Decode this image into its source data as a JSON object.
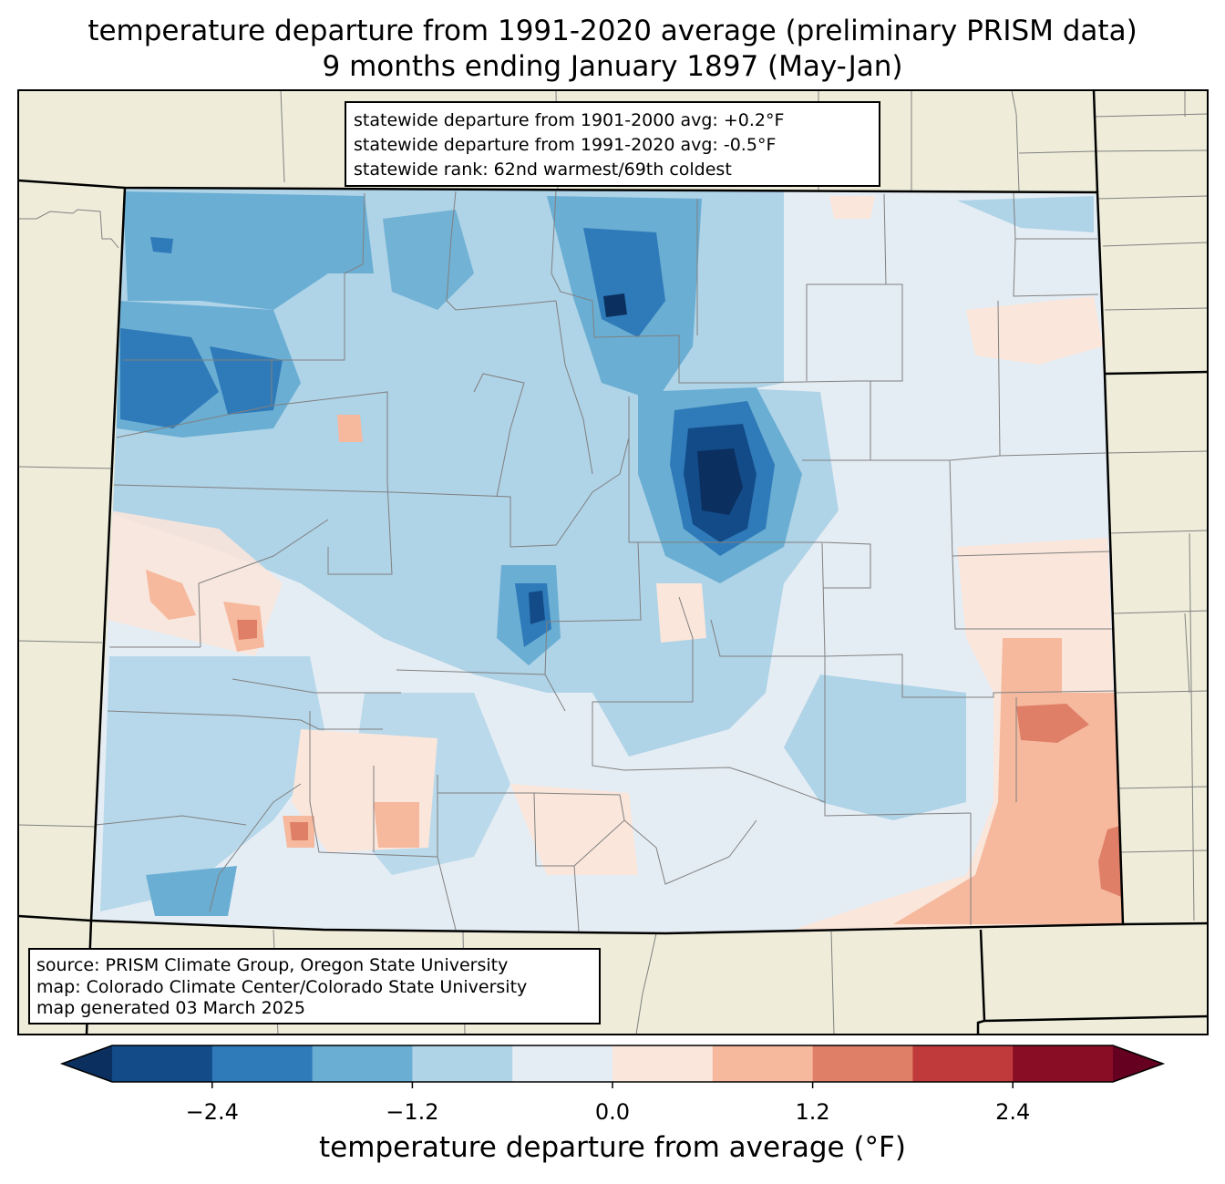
{
  "title": {
    "line1": "temperature departure from 1991-2020 average (preliminary PRISM data)",
    "line2": "9 months ending January 1897 (May-Jan)"
  },
  "stats": {
    "line1": "statewide departure from 1901-2000 avg: +0.2°F",
    "line2": "statewide departure from 1991-2020 avg: -0.5°F",
    "line3": "statewide rank: 62nd warmest/69th coldest"
  },
  "source": {
    "line1": "source: PRISM Climate Group, Oregon State University",
    "line2": "map: Colorado Climate Center/Colorado State University",
    "line3": "map generated 03 March 2025"
  },
  "colorbar": {
    "label": "temperature departure from average (°F)",
    "ticks": [
      "−2.4",
      "−1.2",
      "0.0",
      "1.2",
      "2.4"
    ],
    "tick_values": [
      -2.4,
      -1.2,
      0.0,
      1.2,
      2.4
    ],
    "range": [
      -3.0,
      3.0
    ],
    "bin_width": 0.6,
    "colors": [
      "#0b305f",
      "#134b88",
      "#2f7ab8",
      "#6aaed3",
      "#afd3e7",
      "#e5edf4",
      "#fae6db",
      "#f6b99e",
      "#e07f67",
      "#c03a3b",
      "#880d25",
      "#650020"
    ]
  },
  "map_colors": {
    "land": "#efedda",
    "state_border": "#000000",
    "county_border": "#808080"
  }
}
